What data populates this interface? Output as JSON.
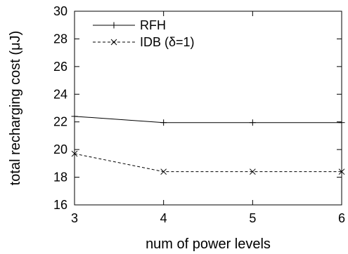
{
  "chart_data": {
    "type": "line",
    "xlabel": "num of power levels",
    "ylabel": "total recharging cost (μJ)",
    "xlim": [
      3,
      6
    ],
    "ylim": [
      16,
      30
    ],
    "x_ticks": [
      3,
      4,
      5,
      6
    ],
    "y_ticks": [
      16,
      18,
      20,
      22,
      24,
      26,
      28,
      30
    ],
    "grid": false,
    "legend_position": "top-left",
    "series": [
      {
        "name": "RFH",
        "line_style": "solid",
        "marker": "plus",
        "color": "#000000",
        "x": [
          3,
          4,
          5,
          6
        ],
        "y": [
          22.4,
          21.95,
          21.95,
          21.95
        ]
      },
      {
        "name": "IDB (δ=1)",
        "line_style": "dashed",
        "marker": "cross",
        "color": "#000000",
        "x": [
          3,
          4,
          5,
          6
        ],
        "y": [
          19.7,
          18.4,
          18.4,
          18.4
        ]
      }
    ]
  }
}
